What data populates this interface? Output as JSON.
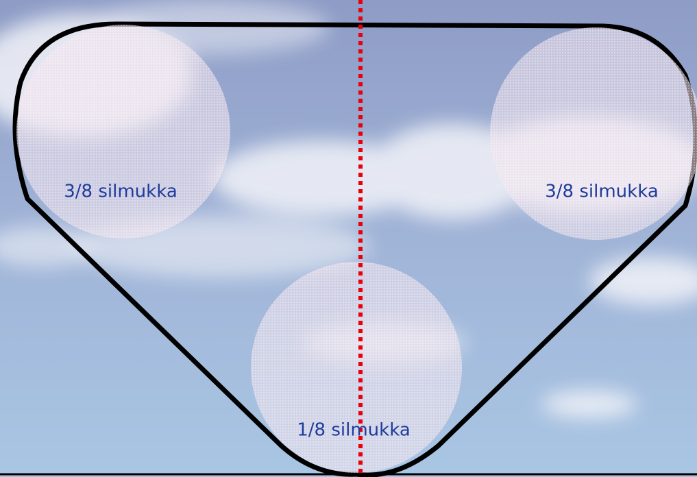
{
  "nodes": [
    {
      "label": "3/8 silmukka"
    },
    {
      "label": "3/8 silmukka"
    },
    {
      "label": "1/8 silmukka"
    }
  ]
}
